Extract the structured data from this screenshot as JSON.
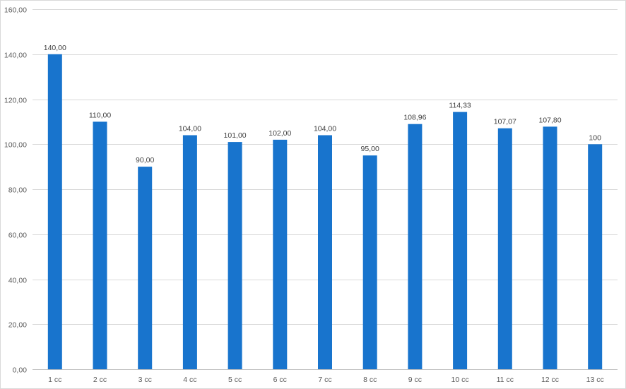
{
  "chart_data": {
    "type": "bar",
    "title": "",
    "xlabel": "",
    "ylabel": "",
    "categories": [
      "1 cc",
      "2 cc",
      "3 cc",
      "4 cc",
      "5 cc",
      "6 cc",
      "7 cc",
      "8 cc",
      "9 cc",
      "10 cc",
      "11 cc",
      "12 cc",
      "13 cc"
    ],
    "values": [
      140,
      110,
      90,
      104,
      101,
      102,
      104,
      95,
      108.96,
      114.33,
      107.07,
      107.8,
      100
    ],
    "data_labels": [
      "140,00",
      "110,00",
      "90,00",
      "104,00",
      "101,00",
      "102,00",
      "104,00",
      "95,00",
      "108,96",
      "114,33",
      "107,07",
      "107,80",
      "100"
    ],
    "y_ticks": [
      0,
      20,
      40,
      60,
      80,
      100,
      120,
      140,
      160
    ],
    "y_tick_labels": [
      "0,00",
      "20,00",
      "40,00",
      "60,00",
      "80,00",
      "100,00",
      "120,00",
      "140,00",
      "160,00"
    ],
    "ylim": [
      0,
      160
    ],
    "grid": true,
    "legend": "none",
    "bar_color": "#1874CD"
  }
}
